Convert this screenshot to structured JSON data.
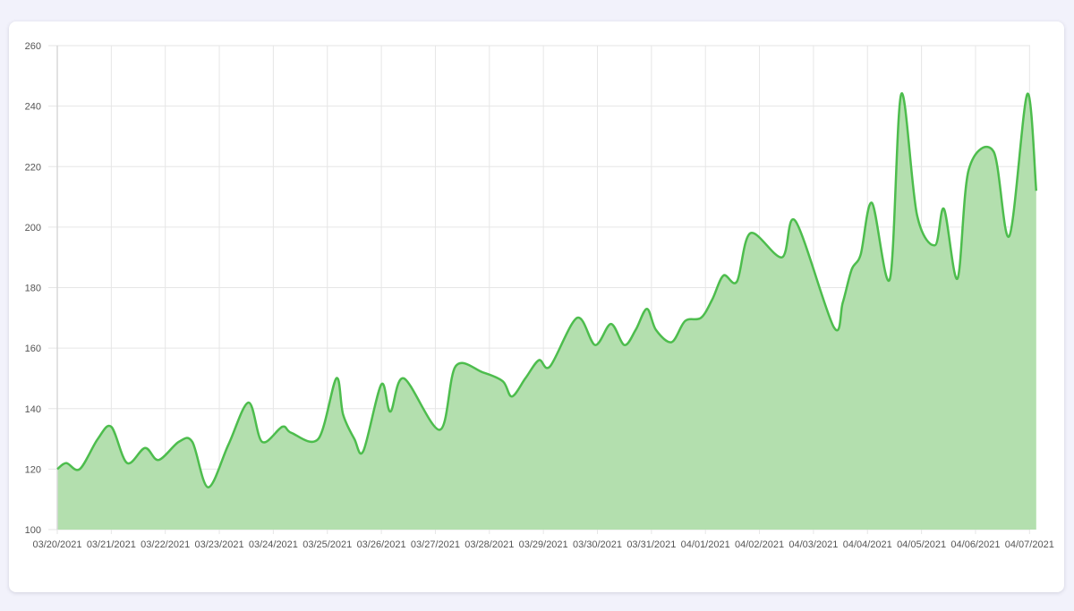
{
  "colors": {
    "line": "#4dbd4d",
    "fill": "#b3dfae",
    "grid": "#e6e6e6",
    "background": "#f2f2fb",
    "card": "#ffffff"
  },
  "chart_data": {
    "type": "area",
    "title": "",
    "xlabel": "",
    "ylabel": "",
    "ylim": [
      100,
      260
    ],
    "yticks": [
      260,
      240,
      220,
      200,
      180,
      160,
      140,
      120,
      100
    ],
    "xticks": [
      "03/20/2021",
      "03/21/2021",
      "03/22/2021",
      "03/23/2021",
      "03/24/2021",
      "03/25/2021",
      "03/26/2021",
      "03/27/2021",
      "03/28/2021",
      "03/29/2021",
      "03/30/2021",
      "03/31/2021",
      "04/01/2021",
      "04/02/2021",
      "04/03/2021",
      "04/04/2021",
      "04/05/2021",
      "04/06/2021",
      "04/07/2021"
    ],
    "grid": true,
    "legend": "none",
    "series": [
      {
        "x": [
          "03/20/2021 00:00",
          "03/20/2021 04:00",
          "03/20/2021 10:00",
          "03/20/2021 18:00",
          "03/21/2021 00:00",
          "03/21/2021 07:00",
          "03/21/2021 15:00",
          "03/21/2021 21:00",
          "03/22/2021 06:00",
          "03/22/2021 12:00",
          "03/22/2021 19:00",
          "03/23/2021 04:00",
          "03/23/2021 13:00",
          "03/23/2021 19:00",
          "03/24/2021 04:00",
          "03/24/2021 08:00",
          "03/24/2021 20:00",
          "03/25/2021 04:00",
          "03/25/2021 07:00",
          "03/25/2021 12:00",
          "03/25/2021 16:00",
          "03/26/2021 00:00",
          "03/26/2021 04:00",
          "03/26/2021 10:00",
          "03/27/2021 02:00",
          "03/27/2021 09:00",
          "03/27/2021 21:00",
          "03/28/2021 06:00",
          "03/28/2021 10:00",
          "03/28/2021 16:00",
          "03/28/2021 22:00",
          "03/29/2021 03:00",
          "03/29/2021 15:00",
          "03/29/2021 23:00",
          "03/30/2021 06:00",
          "03/30/2021 12:00",
          "03/30/2021 17:00",
          "03/30/2021 22:00",
          "03/31/2021 02:00",
          "03/31/2021 09:00",
          "03/31/2021 15:00",
          "03/31/2021 22:00",
          "04/01/2021 03:00",
          "04/01/2021 08:00",
          "04/01/2021 14:00",
          "04/01/2021 20:00",
          "04/02/2021 10:00",
          "04/02/2021 16:00",
          "04/03/2021 09:00",
          "04/03/2021 13:00",
          "04/03/2021 17:00",
          "04/03/2021 21:00",
          "04/04/2021 02:00",
          "04/04/2021 10:00",
          "04/04/2021 15:00",
          "04/04/2021 22:00",
          "04/05/2021 06:00",
          "04/05/2021 10:00",
          "04/05/2021 16:00",
          "04/05/2021 21:00",
          "04/06/2021 08:00",
          "04/06/2021 15:00",
          "04/06/2021 23:00",
          "04/07/2021 03:00"
        ],
        "values": [
          120,
          122,
          120,
          130,
          134,
          122,
          127,
          123,
          129,
          129,
          114,
          128,
          142,
          129,
          134,
          132,
          130,
          150,
          138,
          130,
          126,
          148,
          139,
          150,
          133,
          154,
          152,
          149,
          144,
          150,
          156,
          154,
          170,
          161,
          168,
          161,
          166,
          173,
          166,
          162,
          169,
          170,
          176,
          184,
          182,
          198,
          190,
          202,
          167,
          175,
          186,
          191,
          208,
          183,
          244,
          204,
          194,
          206,
          183,
          219,
          225,
          197,
          244,
          212
        ]
      }
    ]
  }
}
